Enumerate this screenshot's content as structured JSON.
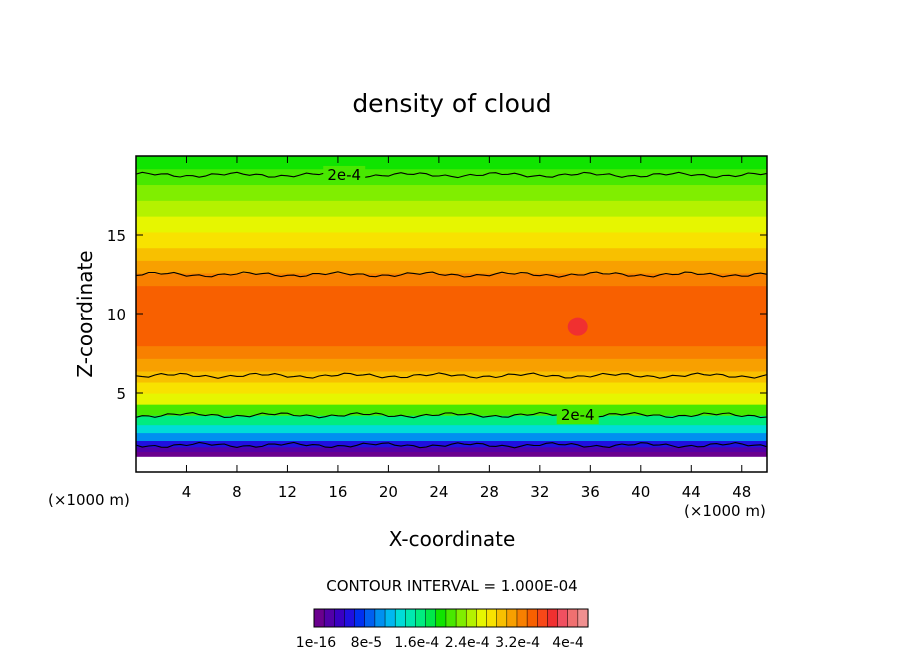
{
  "chart_data": {
    "type": "heatmap",
    "title": "density of cloud",
    "xlabel": "X-coordinate",
    "ylabel": "Z-coordinate",
    "x_unit_left": "(×1000 m)",
    "x_unit_right": "(×1000 m)",
    "xlim": [
      0,
      50
    ],
    "ylim": [
      0,
      20
    ],
    "x_ticks": [
      4,
      8,
      12,
      16,
      20,
      24,
      28,
      32,
      36,
      40,
      44,
      48
    ],
    "y_ticks": [
      5,
      10,
      15
    ],
    "contour_interval_text": "CONTOUR INTERVAL = 1.000E-04",
    "contour_labels": [
      {
        "text": "2e-4",
        "x": 16.5,
        "z": 18.8
      },
      {
        "text": "2e-4",
        "x": 35,
        "z": 3.6
      }
    ],
    "colorbar": {
      "labels": [
        "1e-16",
        "8e-5",
        "1.6e-4",
        "2.4e-4",
        "3.2e-4",
        "4e-4"
      ],
      "label_values": [
        0,
        8e-05,
        0.00016,
        0.00024,
        0.00032,
        0.0004
      ],
      "colors": [
        "#6a008e",
        "#5200a8",
        "#3a00c2",
        "#2010e0",
        "#0030f0",
        "#0060f0",
        "#0090f0",
        "#00b8f0",
        "#00dcd8",
        "#00e8b0",
        "#00ec80",
        "#00e84a",
        "#10e400",
        "#48e800",
        "#80ee00",
        "#b4f200",
        "#e6f600",
        "#f8e200",
        "#f8c000",
        "#f8a000",
        "#f88000",
        "#f86000",
        "#f84818",
        "#f03030",
        "#f05060",
        "#f07070",
        "#f09090"
      ]
    },
    "profile": [
      {
        "z": 0.0,
        "level": null
      },
      {
        "z": 0.5,
        "level": null
      },
      {
        "z": 1.0,
        "level": 0
      },
      {
        "z": 1.3,
        "level": 1
      },
      {
        "z": 1.6,
        "level": 3
      },
      {
        "z": 2.0,
        "level": 6
      },
      {
        "z": 2.5,
        "level": 8
      },
      {
        "z": 3.0,
        "level": 10
      },
      {
        "z": 3.6,
        "level": 13
      },
      {
        "z": 4.3,
        "level": 16
      },
      {
        "z": 5.0,
        "level": 17
      },
      {
        "z": 5.7,
        "level": 18
      },
      {
        "z": 6.4,
        "level": 19
      },
      {
        "z": 7.2,
        "level": 20
      },
      {
        "z": 8.0,
        "level": 21
      },
      {
        "z": 9.5,
        "level": 21
      },
      {
        "z": 11.0,
        "level": 21
      },
      {
        "z": 11.8,
        "level": 20
      },
      {
        "z": 12.6,
        "level": 19
      },
      {
        "z": 13.4,
        "level": 18
      },
      {
        "z": 14.2,
        "level": 17
      },
      {
        "z": 15.2,
        "level": 16
      },
      {
        "z": 16.2,
        "level": 15
      },
      {
        "z": 17.2,
        "level": 14
      },
      {
        "z": 18.2,
        "level": 13
      },
      {
        "z": 19.2,
        "level": 12
      },
      {
        "z": 20.0,
        "level": 11
      }
    ],
    "contour_lines_z": [
      1.7,
      3.6,
      6.1,
      12.5,
      18.8
    ],
    "max_marker": {
      "x": 35,
      "z": 9.2
    }
  }
}
